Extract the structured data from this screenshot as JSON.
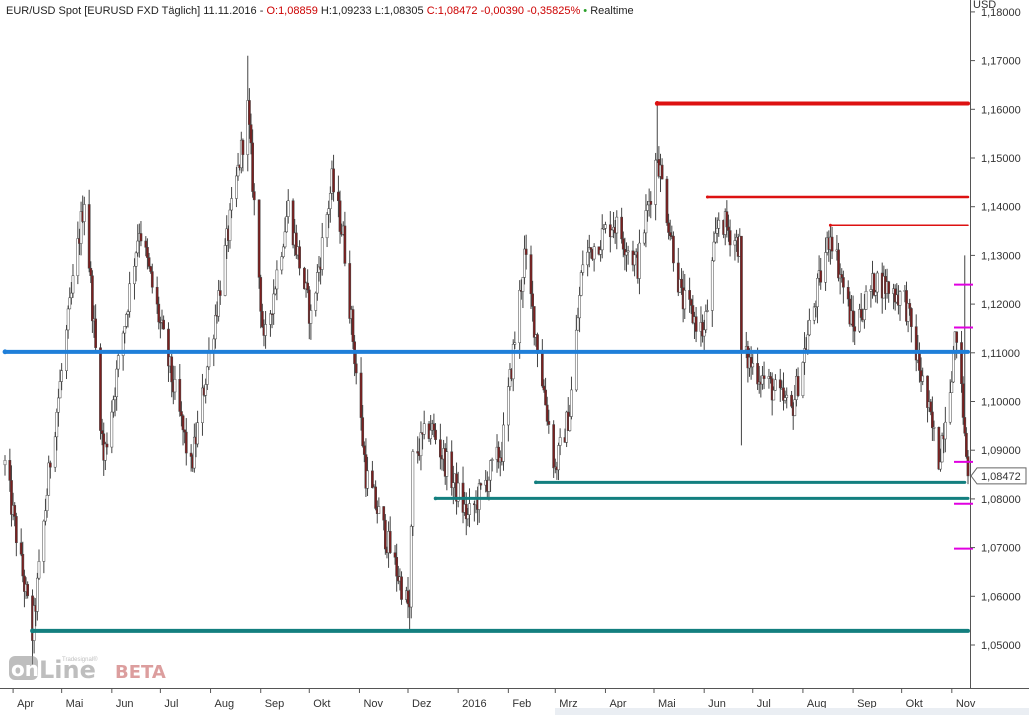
{
  "header": {
    "instrument": "EUR/USD Spot [EURUSD FXD Täglich] 11.11.2016 -",
    "open": "O:1,08859",
    "high": "H:1,09233",
    "low": "L:1,08305",
    "close": "C:1,08472 -0,00390 -0,35825%",
    "realtime_dot": "•",
    "realtime": "Realtime"
  },
  "logo": {
    "prefix": "on",
    "main": "Line",
    "small": "Tradesignal®",
    "beta": "BETA"
  },
  "colors": {
    "up": "#ffffff",
    "down": "#7b1f1f",
    "wick": "#444444",
    "blue_line": "#1f7fd9",
    "teal_line": "#137f7f",
    "red_line": "#dd1111",
    "magenta": "#e000e0",
    "header_dark": "#222222",
    "header_red": "#cc0000",
    "realtime": "#2aa02a"
  },
  "chart_data": {
    "type": "candlestick",
    "instrument": "EUR/USD",
    "y_axis_unit": "USD",
    "ylim": [
      1.04,
      1.181
    ],
    "y_ticks": [
      1.05,
      1.06,
      1.07,
      1.08,
      1.09,
      1.1,
      1.11,
      1.12,
      1.13,
      1.14,
      1.15,
      1.16,
      1.17,
      1.18
    ],
    "y_tick_labels": [
      "1,05000",
      "1,06000",
      "1,07000",
      "1,08000",
      "1,09000",
      "1,10000",
      "1,11000",
      "1,12000",
      "1,13000",
      "1,14000",
      "1,15000",
      "1,16000",
      "1,17000",
      "1,18000"
    ],
    "x_labels": [
      "Apr",
      "Mai",
      "Jun",
      "Jul",
      "Aug",
      "Sep",
      "Okt",
      "Nov",
      "Dez",
      "2016",
      "Feb",
      "Mrz",
      "Apr",
      "Mai",
      "Jun",
      "Jul",
      "Aug",
      "Sep",
      "Okt",
      "Nov"
    ],
    "x_label_months": [
      0,
      1,
      2,
      3,
      4,
      5,
      6,
      7,
      8,
      9,
      10,
      11,
      12,
      13,
      14,
      15,
      16,
      17,
      18,
      19
    ],
    "start_date": "2015-03-27",
    "end_date": "2016-11-11",
    "last_price_label": "1,08472",
    "last_price": 1.08472,
    "anchors": [
      [
        "2015-03-27",
        1.087
      ],
      [
        "2015-04-13",
        1.052
      ],
      [
        "2015-04-24",
        1.088
      ],
      [
        "2015-05-15",
        1.142
      ],
      [
        "2015-05-27",
        1.088
      ],
      [
        "2015-06-18",
        1.136
      ],
      [
        "2015-07-20",
        1.086
      ],
      [
        "2015-08-24",
        1.16
      ],
      [
        "2015-09-03",
        1.111
      ],
      [
        "2015-09-18",
        1.14
      ],
      [
        "2015-10-02",
        1.117
      ],
      [
        "2015-10-15",
        1.145
      ],
      [
        "2015-10-22",
        1.134
      ],
      [
        "2015-11-05",
        1.085
      ],
      [
        "2015-12-02",
        1.057
      ],
      [
        "2015-12-04",
        1.088
      ],
      [
        "2015-12-15",
        1.095
      ],
      [
        "2016-01-07",
        1.076
      ],
      [
        "2016-01-28",
        1.09
      ],
      [
        "2016-02-11",
        1.13
      ],
      [
        "2016-03-01",
        1.086
      ],
      [
        "2016-03-10",
        1.098
      ],
      [
        "2016-03-18",
        1.129
      ],
      [
        "2016-04-06",
        1.137
      ],
      [
        "2016-04-21",
        1.128
      ],
      [
        "2016-05-03",
        1.151
      ],
      [
        "2016-05-18",
        1.121
      ],
      [
        "2016-06-01",
        1.114
      ],
      [
        "2016-06-10",
        1.138
      ],
      [
        "2016-06-23",
        1.132
      ],
      [
        "2016-06-24",
        1.11
      ],
      [
        "2016-07-25",
        1.098
      ],
      [
        "2016-08-18",
        1.135
      ],
      [
        "2016-09-01",
        1.115
      ],
      [
        "2016-09-15",
        1.125
      ],
      [
        "2016-10-03",
        1.121
      ],
      [
        "2016-10-24",
        1.088
      ],
      [
        "2016-11-04",
        1.114
      ],
      [
        "2016-11-11",
        1.0847
      ]
    ],
    "extreme_wicks": [
      [
        "2015-04-13",
        1.046,
        "low"
      ],
      [
        "2015-08-24",
        1.171,
        "high"
      ],
      [
        "2015-12-02",
        1.053,
        "low"
      ],
      [
        "2016-05-03",
        1.161,
        "high"
      ],
      [
        "2016-06-24",
        1.091,
        "low"
      ],
      [
        "2016-11-09",
        1.13,
        "high"
      ]
    ],
    "horizontal_lines": [
      {
        "kind": "blue",
        "y": 1.1102,
        "from": "2015-03-27",
        "to": "2016-11-11",
        "width": 4
      },
      {
        "kind": "teal",
        "y": 1.0529,
        "from": "2015-04-13",
        "to": "2016-11-11",
        "width": 4
      },
      {
        "kind": "teal",
        "y": 1.0801,
        "from": "2015-12-18",
        "to": "2016-11-11",
        "width": 3
      },
      {
        "kind": "teal",
        "y": 1.0834,
        "from": "2016-02-18",
        "to": "2016-11-09",
        "width": 3
      },
      {
        "kind": "red",
        "y": 1.1612,
        "from": "2016-05-03",
        "to": "2016-11-11",
        "width": 4
      },
      {
        "kind": "red",
        "y": 1.142,
        "from": "2016-06-03",
        "to": "2016-11-11",
        "width": 2.5
      },
      {
        "kind": "red",
        "y": 1.1362,
        "from": "2016-08-18",
        "to": "2016-11-11",
        "width": 1.5
      }
    ],
    "magenta_marks": [
      1.124,
      1.1152,
      1.0876,
      1.079,
      1.0698
    ]
  }
}
